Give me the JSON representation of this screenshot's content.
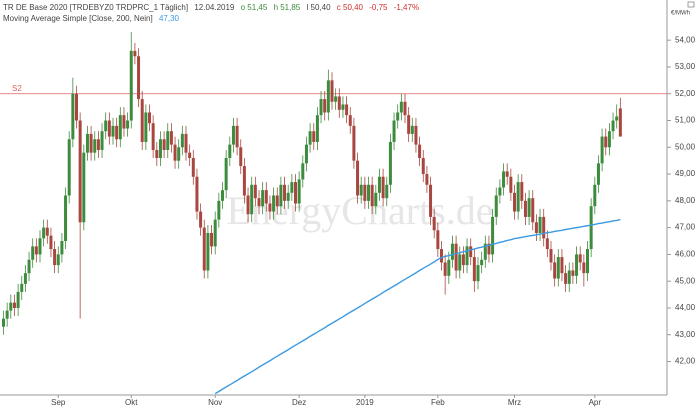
{
  "chart_data": {
    "type": "candlestick",
    "header": {
      "symbol": "TR DE Base 2020 [TRDEBYZ0 TRDPRC_1 Täglich]",
      "date": "12.04.2019",
      "open_label": "o 51,45",
      "high_label": "h 51,85",
      "low_label": "l 50,40",
      "close_label": "c 50,40",
      "change": "-0,75",
      "change_pct": "-1,47%"
    },
    "y_unit": "€/MWh",
    "watermark": "EnergyCharts.de",
    "up_color": "#3d8b3d",
    "down_color": "#a8463f",
    "categories": [
      null,
      null,
      null,
      null,
      null,
      null,
      null,
      null,
      null,
      null,
      null,
      null,
      null,
      null,
      null,
      "Sep",
      null,
      null,
      null,
      null,
      null,
      null,
      null,
      null,
      null,
      null,
      null,
      null,
      null,
      null,
      null,
      null,
      null,
      null,
      null,
      "Okt",
      null,
      null,
      null,
      null,
      null,
      null,
      null,
      null,
      null,
      null,
      null,
      null,
      null,
      null,
      null,
      null,
      null,
      null,
      null,
      null,
      null,
      null,
      "Nov",
      null,
      null,
      null,
      null,
      null,
      null,
      null,
      null,
      null,
      null,
      null,
      null,
      null,
      null,
      null,
      null,
      null,
      null,
      null,
      null,
      null,
      null,
      "Dez",
      null,
      null,
      null,
      null,
      null,
      null,
      null,
      null,
      null,
      null,
      null,
      null,
      null,
      null,
      null,
      null,
      null,
      "2019",
      null,
      null,
      null,
      null,
      null,
      null,
      null,
      null,
      null,
      null,
      null,
      null,
      null,
      null,
      null,
      null,
      null,
      null,
      null,
      "Feb",
      null,
      null,
      null,
      null,
      null,
      null,
      null,
      null,
      null,
      null,
      null,
      null,
      null,
      null,
      null,
      null,
      null,
      null,
      null,
      null,
      "Mrz",
      null,
      null,
      null,
      null,
      null,
      null,
      null,
      null,
      null,
      null,
      null,
      null,
      null,
      null,
      null,
      null,
      null,
      null,
      null,
      null,
      null,
      "Apr",
      null,
      null,
      null,
      null,
      null,
      null,
      null
    ],
    "open": [
      43.3,
      43.6,
      43.9,
      44.2,
      44.0,
      44.6,
      44.9,
      45.3,
      45.8,
      46.3,
      46.0,
      46.6,
      47.0,
      46.7,
      46.2,
      45.6,
      46.0,
      46.5,
      48.2,
      50.3,
      52.0,
      51.0,
      47.2,
      49.8,
      50.5,
      49.8,
      50.3,
      49.9,
      50.6,
      51.0,
      50.4,
      50.8,
      50.3,
      51.2,
      50.7,
      51.0,
      53.6,
      53.4,
      51.8,
      50.2,
      51.3,
      50.9,
      49.9,
      49.6,
      50.3,
      49.9,
      50.6,
      50.1,
      49.5,
      50.0,
      50.5,
      49.8,
      49.6,
      48.9,
      47.6,
      47.0,
      45.4,
      46.8,
      46.3,
      47.3,
      48.0,
      48.4,
      49.6,
      50.1,
      50.8,
      50.0,
      49.3,
      48.2,
      47.5,
      48.6,
      48.1,
      47.8,
      48.4,
      47.9,
      47.6,
      48.2,
      47.8,
      48.6,
      48.0,
      48.3,
      48.7,
      47.9,
      48.8,
      49.4,
      50.1,
      50.6,
      50.2,
      51.2,
      51.8,
      51.3,
      52.5,
      51.7,
      51.9,
      51.4,
      51.6,
      51.2,
      50.8,
      49.5,
      48.2,
      48.6,
      48.0,
      48.6,
      47.8,
      48.3,
      48.9,
      48.1,
      48.6,
      50.2,
      51.0,
      51.3,
      51.7,
      51.2,
      50.5,
      50.8,
      50.1,
      49.6,
      49.0,
      48.6,
      47.4,
      46.9,
      46.2,
      45.7,
      45.2,
      45.8,
      46.4,
      45.4,
      46.0,
      45.6,
      46.3,
      45.9,
      45.0,
      45.6,
      45.8,
      46.4,
      46.0,
      47.4,
      48.2,
      48.5,
      49.1,
      48.9,
      48.3,
      47.6,
      48.7,
      48.0,
      47.4,
      48.1,
      47.2,
      46.8,
      47.4,
      46.6,
      46.2,
      45.7,
      45.1,
      45.9,
      45.3,
      44.9,
      45.4,
      45.2,
      46.0,
      45.7,
      45.3,
      46.2,
      47.8,
      48.6,
      49.4,
      50.4,
      50.0,
      50.6,
      51.0,
      51.45
    ],
    "high": [
      43.9,
      44.2,
      44.5,
      44.5,
      44.9,
      45.2,
      45.6,
      46.1,
      46.6,
      46.6,
      46.9,
      47.3,
      47.3,
      47.0,
      46.5,
      46.3,
      46.8,
      48.5,
      50.6,
      52.6,
      52.3,
      51.3,
      50.1,
      50.8,
      50.8,
      50.6,
      50.6,
      50.9,
      51.3,
      51.3,
      51.1,
      51.1,
      51.5,
      51.5,
      51.3,
      54.3,
      53.9,
      53.7,
      52.1,
      51.6,
      51.6,
      51.2,
      50.2,
      50.6,
      50.6,
      50.9,
      50.9,
      50.4,
      50.3,
      50.8,
      50.8,
      50.1,
      49.9,
      49.2,
      47.9,
      47.3,
      47.1,
      47.1,
      47.6,
      48.3,
      48.7,
      49.9,
      50.4,
      51.1,
      51.1,
      50.3,
      49.6,
      48.5,
      48.9,
      48.9,
      48.4,
      48.7,
      48.7,
      48.2,
      48.5,
      48.5,
      48.9,
      48.9,
      48.6,
      49.0,
      49.0,
      49.1,
      49.7,
      50.4,
      50.9,
      50.9,
      51.5,
      52.1,
      52.1,
      52.9,
      52.8,
      52.2,
      52.2,
      51.9,
      51.9,
      51.5,
      51.1,
      49.8,
      48.9,
      48.9,
      48.9,
      48.9,
      48.6,
      49.2,
      49.2,
      48.9,
      50.5,
      51.3,
      51.6,
      52.0,
      52.0,
      51.5,
      51.1,
      51.1,
      50.4,
      49.9,
      49.3,
      48.9,
      47.7,
      47.2,
      46.5,
      46.0,
      46.1,
      46.7,
      46.7,
      46.3,
      46.3,
      46.6,
      46.6,
      46.2,
      45.9,
      46.1,
      46.7,
      46.7,
      47.7,
      48.5,
      48.8,
      49.4,
      49.4,
      49.2,
      48.6,
      49.0,
      49.0,
      48.3,
      48.4,
      48.4,
      47.5,
      47.7,
      47.7,
      46.9,
      46.5,
      46.0,
      46.2,
      46.2,
      45.6,
      45.7,
      45.7,
      46.3,
      46.3,
      46.0,
      46.5,
      48.1,
      48.9,
      49.7,
      50.7,
      50.7,
      50.9,
      51.3,
      51.6,
      51.85
    ],
    "low": [
      43.0,
      43.3,
      43.6,
      43.7,
      43.7,
      44.3,
      44.6,
      45.0,
      45.5,
      45.7,
      45.7,
      46.3,
      46.4,
      45.9,
      45.3,
      45.3,
      45.7,
      46.2,
      47.9,
      50.0,
      50.7,
      43.6,
      46.9,
      49.5,
      49.5,
      49.5,
      49.6,
      49.6,
      50.3,
      50.1,
      50.1,
      50.0,
      50.0,
      50.4,
      50.4,
      50.7,
      53.1,
      51.5,
      49.9,
      49.9,
      50.6,
      49.6,
      49.3,
      49.3,
      49.6,
      49.6,
      49.8,
      49.2,
      49.2,
      49.7,
      49.5,
      49.3,
      48.6,
      47.3,
      46.7,
      45.1,
      45.1,
      46.0,
      46.0,
      47.0,
      47.7,
      48.1,
      49.3,
      49.8,
      49.7,
      49.0,
      47.9,
      47.2,
      47.2,
      47.8,
      47.5,
      47.5,
      47.6,
      47.3,
      47.3,
      47.5,
      47.5,
      47.7,
      47.7,
      48.0,
      47.6,
      47.6,
      48.5,
      49.1,
      49.8,
      49.9,
      49.9,
      50.9,
      51.0,
      51.0,
      51.4,
      51.4,
      51.1,
      51.1,
      50.9,
      50.5,
      49.2,
      47.9,
      47.9,
      47.7,
      47.7,
      47.5,
      47.5,
      48.0,
      47.8,
      47.8,
      48.3,
      49.9,
      50.7,
      51.0,
      50.9,
      50.2,
      50.2,
      49.8,
      49.3,
      48.7,
      48.3,
      47.1,
      46.6,
      45.9,
      45.4,
      44.5,
      44.9,
      45.5,
      45.1,
      45.1,
      45.3,
      45.3,
      45.6,
      44.6,
      44.7,
      45.3,
      45.5,
      45.7,
      45.7,
      47.1,
      47.9,
      48.2,
      48.6,
      48.0,
      47.3,
      47.3,
      47.7,
      47.1,
      47.1,
      46.9,
      46.5,
      46.5,
      46.3,
      45.9,
      45.4,
      44.8,
      44.8,
      45.0,
      44.6,
      44.6,
      44.9,
      44.9,
      45.4,
      44.8,
      45.0,
      45.9,
      47.5,
      48.3,
      49.1,
      49.7,
      49.7,
      50.3,
      50.7,
      50.4
    ],
    "close": [
      43.6,
      43.9,
      44.2,
      44.0,
      44.6,
      44.9,
      45.3,
      45.8,
      46.3,
      46.0,
      46.6,
      47.0,
      46.7,
      46.2,
      45.6,
      46.0,
      46.5,
      48.2,
      50.3,
      52.0,
      51.0,
      47.2,
      49.8,
      50.5,
      49.8,
      50.3,
      49.9,
      50.6,
      51.0,
      50.4,
      50.8,
      50.3,
      51.2,
      50.7,
      51.0,
      53.6,
      53.4,
      51.8,
      50.2,
      51.3,
      50.9,
      49.9,
      49.6,
      50.3,
      49.9,
      50.6,
      50.1,
      49.5,
      50.0,
      50.5,
      49.8,
      49.6,
      48.9,
      47.6,
      47.0,
      45.4,
      46.8,
      46.3,
      47.3,
      48.0,
      48.4,
      49.6,
      50.1,
      50.8,
      50.0,
      49.3,
      48.2,
      47.5,
      48.6,
      48.1,
      47.8,
      48.4,
      47.9,
      47.6,
      48.2,
      47.8,
      48.6,
      48.0,
      48.3,
      48.7,
      47.9,
      48.8,
      49.4,
      50.1,
      50.6,
      50.2,
      51.2,
      51.8,
      51.3,
      52.5,
      51.7,
      51.9,
      51.4,
      51.6,
      51.2,
      50.8,
      49.5,
      48.2,
      48.6,
      48.0,
      48.6,
      47.8,
      48.3,
      48.9,
      48.1,
      48.6,
      50.2,
      51.0,
      51.3,
      51.7,
      51.2,
      50.5,
      50.8,
      50.1,
      49.6,
      49.0,
      48.6,
      47.4,
      46.9,
      46.2,
      45.7,
      45.2,
      45.8,
      46.4,
      45.4,
      46.0,
      45.6,
      46.3,
      45.9,
      45.0,
      45.6,
      45.8,
      46.4,
      46.0,
      47.4,
      48.2,
      48.5,
      49.1,
      48.9,
      48.3,
      47.6,
      48.7,
      48.0,
      47.4,
      48.1,
      47.2,
      46.8,
      47.4,
      46.6,
      46.2,
      45.7,
      45.1,
      45.9,
      45.3,
      44.9,
      45.4,
      45.2,
      46.0,
      45.7,
      45.3,
      46.2,
      47.8,
      48.6,
      49.4,
      50.4,
      50.0,
      50.6,
      51.0,
      51.15,
      50.4
    ],
    "series": [
      {
        "name": "Moving Average Simple [Close, 200, Nein]",
        "color": "#3b9ae1",
        "last_label": "47,30",
        "values": [
          null,
          null,
          null,
          null,
          null,
          null,
          null,
          null,
          null,
          null,
          null,
          null,
          null,
          null,
          null,
          null,
          null,
          null,
          null,
          null,
          null,
          null,
          null,
          null,
          null,
          null,
          null,
          null,
          null,
          null,
          null,
          null,
          null,
          null,
          null,
          null,
          null,
          null,
          null,
          null,
          null,
          null,
          null,
          null,
          null,
          null,
          null,
          null,
          null,
          null,
          null,
          null,
          null,
          null,
          null,
          null,
          null,
          null,
          40.8,
          40.88,
          40.97,
          41.05,
          41.13,
          41.21,
          41.29,
          41.38,
          41.46,
          41.54,
          41.62,
          41.7,
          41.79,
          41.87,
          41.95,
          42.03,
          42.12,
          42.2,
          42.28,
          42.36,
          42.44,
          42.53,
          42.61,
          42.69,
          42.77,
          42.85,
          42.94,
          43.02,
          43.1,
          43.18,
          43.26,
          43.35,
          43.43,
          43.51,
          43.59,
          43.67,
          43.76,
          43.84,
          43.92,
          44.0,
          44.08,
          44.17,
          44.25,
          44.33,
          44.41,
          44.49,
          44.58,
          44.66,
          44.74,
          44.82,
          44.9,
          44.99,
          45.07,
          45.15,
          45.23,
          45.31,
          45.4,
          45.48,
          45.56,
          45.64,
          45.72,
          45.81,
          45.89,
          45.92,
          45.96,
          45.99,
          46.03,
          46.06,
          46.1,
          46.13,
          46.17,
          46.2,
          46.24,
          46.27,
          46.31,
          46.34,
          46.38,
          46.41,
          46.45,
          46.48,
          46.52,
          46.55,
          46.59,
          46.61,
          46.64,
          46.66,
          46.69,
          46.71,
          46.73,
          46.76,
          46.78,
          46.81,
          46.83,
          46.86,
          46.88,
          46.9,
          46.93,
          46.95,
          46.98,
          47.0,
          47.02,
          47.05,
          47.07,
          47.1,
          47.12,
          47.15,
          47.17,
          47.2,
          47.22,
          47.25,
          47.27,
          47.3
        ]
      }
    ],
    "levels": [
      {
        "label": "S2",
        "value": 52,
        "color": "#e06060"
      }
    ],
    "ylim": [
      40.75,
      55.5
    ],
    "yticks": [
      {
        "value": 42,
        "label": "42,00"
      },
      {
        "value": 43,
        "label": "43,00"
      },
      {
        "value": 44,
        "label": "44,00"
      },
      {
        "value": 45,
        "label": "45,00"
      },
      {
        "value": 46,
        "label": "46,00"
      },
      {
        "value": 47,
        "label": "47,00"
      },
      {
        "value": 48,
        "label": "48,00"
      },
      {
        "value": 49,
        "label": "49,00"
      },
      {
        "value": 50,
        "label": "50,00"
      },
      {
        "value": 51,
        "label": "51,00"
      },
      {
        "value": 52,
        "label": "52,00"
      },
      {
        "value": 53,
        "label": "53,00"
      },
      {
        "value": 54,
        "label": "54,00"
      }
    ]
  }
}
